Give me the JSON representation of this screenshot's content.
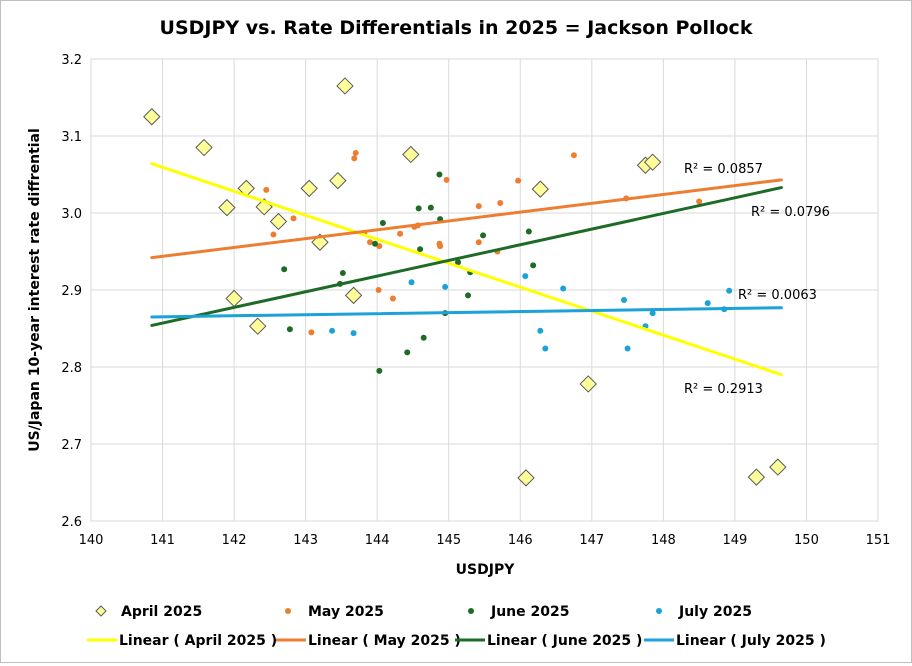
{
  "chart_data": {
    "type": "scatter",
    "title": "USDJPY vs. Rate Differentials  in 2025 = Jackson Pollock",
    "xlabel": "USDJPY",
    "ylabel": "US/Japan 10-year interest rate diffrential",
    "xlim": [
      140,
      151
    ],
    "ylim": [
      2.6,
      3.2
    ],
    "x_ticks": [
      "140",
      "141",
      "142",
      "143",
      "144",
      "145",
      "146",
      "147",
      "148",
      "149",
      "150",
      "151"
    ],
    "y_ticks": [
      "2.6",
      "2.7",
      "2.8",
      "2.9",
      "3.0",
      "3.1",
      "3.2"
    ],
    "grid": true,
    "legend_position": "bottom",
    "series": [
      {
        "name": "April 2025",
        "color": "#ffff99",
        "stroke": "#595959",
        "marker": "diamond",
        "points": [
          [
            140.85,
            3.125
          ],
          [
            141.58,
            3.085
          ],
          [
            141.9,
            3.007
          ],
          [
            142.0,
            2.889
          ],
          [
            142.17,
            3.032
          ],
          [
            142.33,
            2.853
          ],
          [
            142.42,
            3.008
          ],
          [
            142.62,
            2.989
          ],
          [
            143.05,
            3.032
          ],
          [
            143.2,
            2.962
          ],
          [
            143.45,
            3.042
          ],
          [
            143.55,
            3.165
          ],
          [
            143.67,
            2.893
          ],
          [
            144.47,
            3.076
          ],
          [
            146.28,
            3.031
          ],
          [
            146.08,
            2.656
          ],
          [
            146.95,
            2.778
          ],
          [
            147.75,
            3.062
          ],
          [
            147.85,
            3.066
          ],
          [
            149.3,
            2.657
          ],
          [
            149.6,
            2.67
          ]
        ]
      },
      {
        "name": "May 2025",
        "color": "#ed7d31",
        "marker": "circle",
        "points": [
          [
            142.45,
            3.03
          ],
          [
            142.55,
            2.972
          ],
          [
            142.83,
            2.993
          ],
          [
            143.08,
            2.845
          ],
          [
            143.68,
            3.071
          ],
          [
            143.7,
            3.078
          ],
          [
            143.82,
            2.974
          ],
          [
            143.9,
            2.962
          ],
          [
            144.02,
            2.9
          ],
          [
            144.03,
            2.957
          ],
          [
            144.22,
            2.889
          ],
          [
            144.32,
            2.973
          ],
          [
            144.52,
            2.982
          ],
          [
            144.57,
            2.984
          ],
          [
            144.87,
            2.96
          ],
          [
            144.88,
            2.957
          ],
          [
            144.97,
            3.043
          ],
          [
            145.42,
            3.009
          ],
          [
            145.42,
            2.962
          ],
          [
            145.68,
            2.95
          ],
          [
            145.72,
            3.013
          ],
          [
            145.97,
            3.042
          ],
          [
            146.75,
            3.075
          ],
          [
            147.48,
            3.019
          ],
          [
            148.5,
            3.015
          ]
        ]
      },
      {
        "name": "June 2025",
        "color": "#1e6b27",
        "marker": "circle",
        "points": [
          [
            142.7,
            2.927
          ],
          [
            142.78,
            2.849
          ],
          [
            143.48,
            2.908
          ],
          [
            143.52,
            2.922
          ],
          [
            143.97,
            2.96
          ],
          [
            144.03,
            2.795
          ],
          [
            144.08,
            2.987
          ],
          [
            144.42,
            2.819
          ],
          [
            144.58,
            3.006
          ],
          [
            144.6,
            2.953
          ],
          [
            144.65,
            2.838
          ],
          [
            144.75,
            3.007
          ],
          [
            144.87,
            3.05
          ],
          [
            144.88,
            2.992
          ],
          [
            144.95,
            2.87
          ],
          [
            145.13,
            2.936
          ],
          [
            145.27,
            2.893
          ],
          [
            145.3,
            2.923
          ],
          [
            145.48,
            2.971
          ],
          [
            146.12,
            2.976
          ],
          [
            146.18,
            2.932
          ]
        ]
      },
      {
        "name": "July 2025",
        "color": "#1ba2d8",
        "marker": "circle",
        "points": [
          [
            143.37,
            2.847
          ],
          [
            143.67,
            2.844
          ],
          [
            144.48,
            2.91
          ],
          [
            144.95,
            2.904
          ],
          [
            146.07,
            2.918
          ],
          [
            146.28,
            2.847
          ],
          [
            146.35,
            2.824
          ],
          [
            146.6,
            2.902
          ],
          [
            147.45,
            2.887
          ],
          [
            147.5,
            2.824
          ],
          [
            147.75,
            2.853
          ],
          [
            147.85,
            2.87
          ],
          [
            148.62,
            2.883
          ],
          [
            148.85,
            2.875
          ],
          [
            148.92,
            2.899
          ]
        ]
      }
    ],
    "trendlines": [
      {
        "name": "Linear ( April 2025 )",
        "color": "#ffff00",
        "x": [
          140.85,
          149.65
        ],
        "y": [
          3.064,
          2.79
        ],
        "r2_label": "R² = 0.2913"
      },
      {
        "name": "Linear ( May 2025 )",
        "color": "#ed7d31",
        "x": [
          140.85,
          149.65
        ],
        "y": [
          2.942,
          3.043
        ],
        "r2_label": "R² = 0.0857"
      },
      {
        "name": "Linear ( June 2025 )",
        "color": "#1e6b27",
        "x": [
          140.85,
          149.65
        ],
        "y": [
          2.854,
          3.033
        ],
        "r2_label": "R² = 0.0796"
      },
      {
        "name": "Linear ( July 2025 )",
        "color": "#1ba2d8",
        "x": [
          140.85,
          149.65
        ],
        "y": [
          2.865,
          2.877
        ],
        "r2_label": "R² = 0.0063"
      }
    ]
  }
}
